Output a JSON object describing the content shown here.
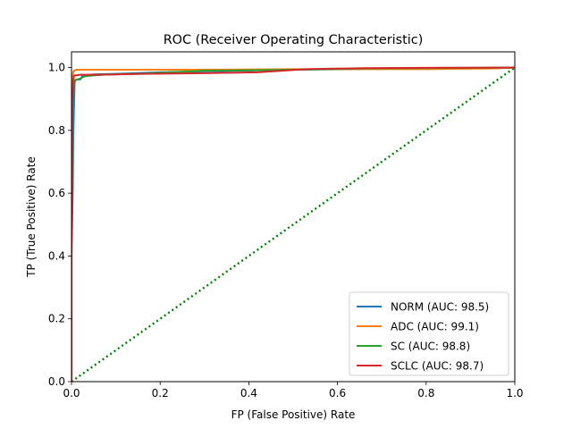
{
  "chart_data": {
    "type": "line",
    "title": "ROC (Receiver Operating Characteristic)",
    "xlabel": "FP (False Positive) Rate",
    "ylabel": "TP (True Positive) Rate",
    "xlim": [
      0.0,
      1.0
    ],
    "ylim": [
      0.0,
      1.05
    ],
    "xticks": [
      0.0,
      0.2,
      0.4,
      0.6,
      0.8,
      1.0
    ],
    "yticks": [
      0.0,
      0.2,
      0.4,
      0.6,
      0.8,
      1.0
    ],
    "xtick_labels": [
      "0.0",
      "0.2",
      "0.4",
      "0.6",
      "0.8",
      "1.0"
    ],
    "ytick_labels": [
      "0.0",
      "0.2",
      "0.4",
      "0.6",
      "0.8",
      "1.0"
    ],
    "grid": false,
    "legend_position": "lower-right",
    "series": [
      {
        "name": "NORM (AUC: 98.5)",
        "color": "#1f77b4",
        "style": "solid",
        "x": [
          0.0,
          0.0,
          0.003,
          0.004,
          0.006,
          0.007,
          0.008,
          0.009,
          0.012,
          0.02,
          0.025,
          0.05,
          0.1,
          0.2,
          0.3,
          0.5,
          0.7,
          0.9,
          1.0
        ],
        "y": [
          0.0,
          0.4,
          0.62,
          0.78,
          0.9,
          0.95,
          0.96,
          0.96,
          0.962,
          0.962,
          0.975,
          0.978,
          0.98,
          0.985,
          0.988,
          0.993,
          0.996,
          0.998,
          1.0
        ]
      },
      {
        "name": "ADC (AUC: 99.1)",
        "color": "#ff7f0e",
        "style": "solid",
        "x": [
          0.0,
          0.0,
          0.002,
          0.004,
          0.005,
          0.008,
          0.01,
          0.02,
          0.1,
          0.3,
          0.5,
          0.66,
          0.8,
          0.95,
          1.0
        ],
        "y": [
          0.0,
          0.9,
          0.97,
          0.985,
          0.99,
          0.99,
          0.993,
          0.993,
          0.993,
          0.993,
          0.995,
          0.995,
          0.995,
          0.997,
          1.0
        ]
      },
      {
        "name": "SC (AUC: 98.8)",
        "color": "#2ca02c",
        "style": "solid",
        "x": [
          0.0,
          0.0,
          0.002,
          0.004,
          0.006,
          0.01,
          0.02,
          0.03,
          0.05,
          0.08,
          0.15,
          0.3,
          0.5,
          0.66,
          0.8,
          1.0
        ],
        "y": [
          0.0,
          0.5,
          0.88,
          0.95,
          0.96,
          0.96,
          0.965,
          0.972,
          0.975,
          0.978,
          0.98,
          0.99,
          0.993,
          0.997,
          0.998,
          1.0
        ]
      },
      {
        "name": "SCLC (AUC: 98.7)",
        "color": "#d62728",
        "style": "solid",
        "x": [
          0.0,
          0.0,
          0.002,
          0.004,
          0.006,
          0.01,
          0.02,
          0.03,
          0.06,
          0.1,
          0.16,
          0.3,
          0.42,
          0.53,
          0.66,
          0.8,
          1.0
        ],
        "y": [
          0.0,
          0.45,
          0.9,
          0.96,
          0.975,
          0.975,
          0.977,
          0.977,
          0.977,
          0.978,
          0.98,
          0.982,
          0.985,
          0.995,
          0.998,
          0.999,
          1.0
        ]
      },
      {
        "name": "",
        "color": "#008000",
        "style": "dotted",
        "x": [
          0.0,
          1.0
        ],
        "y": [
          0.0,
          1.0
        ]
      }
    ]
  }
}
